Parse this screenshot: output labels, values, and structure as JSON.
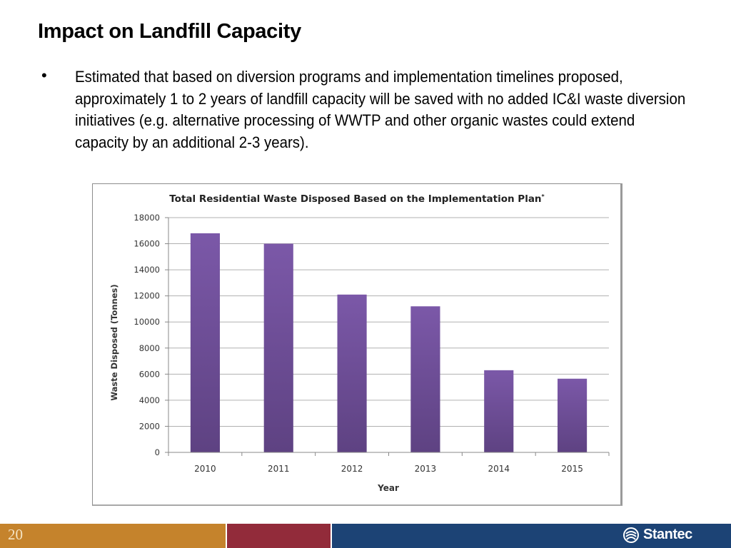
{
  "slide": {
    "title": "Impact on Landfill Capacity",
    "bullet_symbol": "•",
    "bullet_text": "Estimated that based on diversion programs and implementation timelines proposed, approximately 1 to 2 years of landfill capacity will be saved with no added IC&I waste diversion initiatives (e.g. alternative processing of WWTP and other organic wastes could extend capacity by an additional 2-3 years).",
    "page_number": "20",
    "brand": "Stantec"
  },
  "colors": {
    "bar_top": "#7b58a8",
    "bar_bottom": "#5e4282",
    "footer_orange": "#c5832c",
    "footer_red": "#922b3a",
    "footer_blue": "#1c4375"
  },
  "chart_data": {
    "type": "bar",
    "title": "Total Residential Waste Disposed Based on the Implementation Plan",
    "title_marker": "*",
    "xlabel": "Year",
    "ylabel": "Waste Disposed (Tonnes)",
    "categories": [
      "2010",
      "2011",
      "2012",
      "2013",
      "2014",
      "2015"
    ],
    "values": [
      16800,
      16000,
      12100,
      11200,
      6300,
      5650
    ],
    "ylim": [
      0,
      18000
    ],
    "yticks": [
      0,
      2000,
      4000,
      6000,
      8000,
      10000,
      12000,
      14000,
      16000,
      18000
    ],
    "grid": true,
    "legend": "none"
  }
}
